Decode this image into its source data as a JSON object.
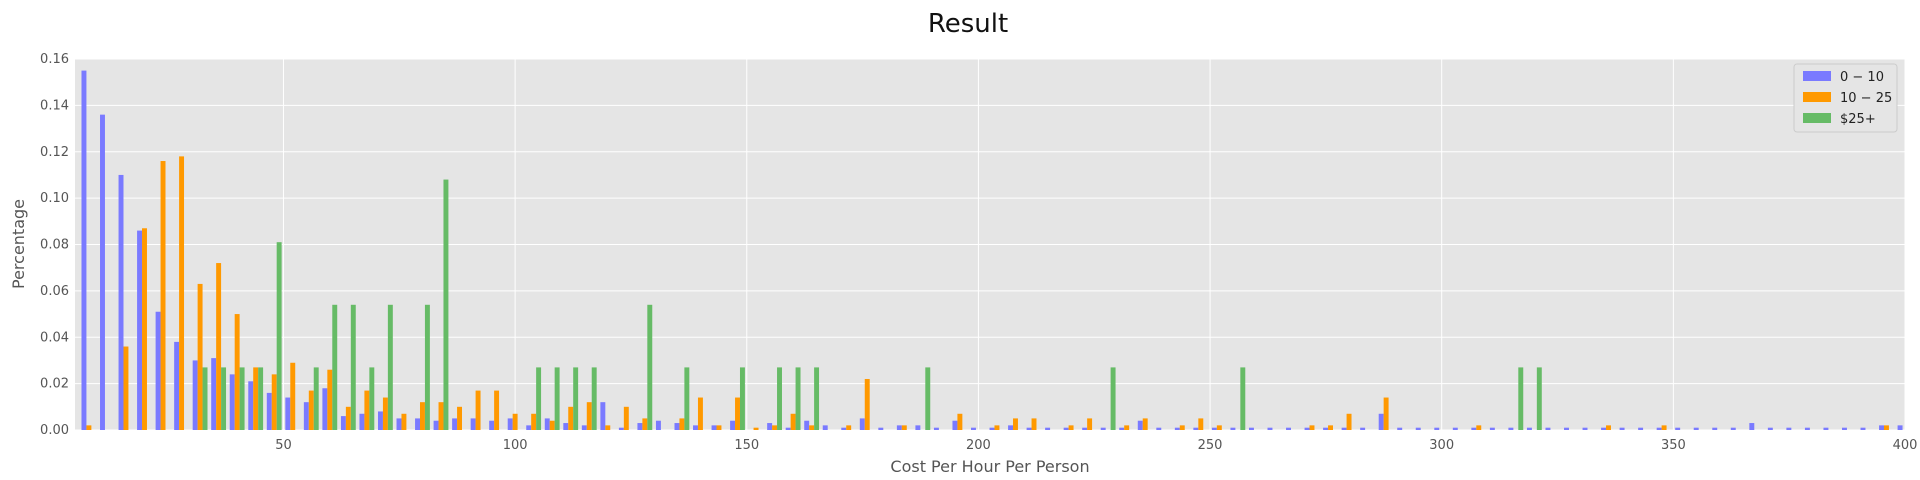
{
  "chart_data": {
    "type": "bar",
    "title": "Result",
    "xlabel": "Cost Per Hour Per Person",
    "ylabel": "Percentage",
    "xlim": [
      5,
      400
    ],
    "ylim": [
      0,
      0.16
    ],
    "x_ticks": [
      50,
      100,
      150,
      200,
      250,
      300,
      350,
      400
    ],
    "x_tick_labels": [
      "50",
      "100",
      "150",
      "200",
      "250",
      "300",
      "350",
      "400"
    ],
    "y_ticks": [
      0,
      0.02,
      0.04,
      0.06,
      0.08,
      0.1,
      0.12,
      0.14,
      0.16
    ],
    "y_tick_labels": [
      "0.00",
      "0.02",
      "0.04",
      "0.06",
      "0.08",
      "0.10",
      "0.12",
      "0.14",
      "0.16"
    ],
    "grid": true,
    "legend_position": "top-right",
    "x": [
      8,
      12,
      16,
      20,
      24,
      28,
      32,
      36,
      40,
      44,
      48,
      52,
      56,
      60,
      64,
      68,
      72,
      76,
      80,
      84,
      88,
      92,
      96,
      100,
      104,
      108,
      112,
      116,
      120,
      124,
      128,
      132,
      136,
      140,
      144,
      148,
      152,
      156,
      160,
      164,
      168,
      172,
      176,
      180,
      184,
      188,
      192,
      196,
      200,
      204,
      208,
      212,
      216,
      220,
      224,
      228,
      232,
      236,
      240,
      244,
      248,
      252,
      256,
      260,
      264,
      268,
      272,
      276,
      280,
      284,
      288,
      292,
      296,
      300,
      304,
      308,
      312,
      316,
      320,
      324,
      328,
      332,
      336,
      340,
      344,
      348,
      352,
      356,
      360,
      364,
      368,
      372,
      376,
      380,
      384,
      388,
      392,
      396,
      400
    ],
    "series": [
      {
        "name": "0 − 10",
        "color": "#7a7aff",
        "values": [
          0.155,
          0.136,
          0.11,
          0.086,
          0.051,
          0.038,
          0.03,
          0.031,
          0.024,
          0.021,
          0.016,
          0.014,
          0.012,
          0.018,
          0.006,
          0.007,
          0.008,
          0.005,
          0.005,
          0.004,
          0.005,
          0.005,
          0.004,
          0.005,
          0.002,
          0.005,
          0.003,
          0.002,
          0.012,
          0.001,
          0.003,
          0.004,
          0.003,
          0.002,
          0.002,
          0.004,
          0,
          0.003,
          0.001,
          0.004,
          0.002,
          0.001,
          0.005,
          0.001,
          0.002,
          0.002,
          0.001,
          0.004,
          0.001,
          0.001,
          0.002,
          0.001,
          0.001,
          0.001,
          0.001,
          0.001,
          0.001,
          0.004,
          0.001,
          0.001,
          0.001,
          0.001,
          0.001,
          0.001,
          0.001,
          0.001,
          0.001,
          0.001,
          0.001,
          0.001,
          0.007,
          0.001,
          0.001,
          0.001,
          0.001,
          0.001,
          0.001,
          0.001,
          0.001,
          0.001,
          0.001,
          0.001,
          0.001,
          0.001,
          0.001,
          0.001,
          0.001,
          0.001,
          0.001,
          0.001,
          0.003,
          0.001,
          0.001,
          0.001,
          0.001,
          0.001,
          0.001,
          0.002,
          0.002
        ]
      },
      {
        "name": "10 − 25",
        "color": "#ff9900",
        "values": [
          0.002,
          0,
          0.036,
          0.087,
          0.116,
          0.118,
          0.063,
          0.072,
          0.05,
          0.027,
          0.024,
          0.029,
          0.017,
          0.026,
          0.01,
          0.017,
          0.014,
          0.007,
          0.012,
          0.012,
          0.01,
          0.017,
          0.017,
          0.007,
          0.007,
          0.004,
          0.01,
          0.012,
          0.002,
          0.01,
          0.005,
          0,
          0.005,
          0.014,
          0.002,
          0.014,
          0.001,
          0.002,
          0.007,
          0.002,
          0,
          0.002,
          0.022,
          0,
          0.002,
          0,
          0,
          0.007,
          0,
          0.002,
          0.005,
          0.005,
          0,
          0.002,
          0.005,
          0,
          0.002,
          0.005,
          0,
          0.002,
          0.005,
          0.002,
          0,
          0,
          0,
          0,
          0.002,
          0.002,
          0.007,
          0,
          0.014,
          0,
          0,
          0,
          0,
          0.002,
          0,
          0,
          0,
          0,
          0,
          0,
          0.002,
          0,
          0,
          0.002,
          0,
          0,
          0,
          0,
          0,
          0,
          0,
          0,
          0,
          0,
          0,
          0.002,
          0
        ]
      },
      {
        "name": "$25+",
        "color": "#66bb66",
        "values": [
          0,
          0,
          0,
          0,
          0,
          0,
          0.027,
          0.027,
          0.027,
          0.027,
          0.081,
          0,
          0.027,
          0.054,
          0.054,
          0.027,
          0.054,
          0,
          0.054,
          0.108,
          0,
          0,
          0,
          0,
          0.027,
          0.027,
          0.027,
          0.027,
          0,
          0,
          0.054,
          0,
          0.027,
          0,
          0,
          0.027,
          0,
          0.027,
          0.027,
          0.027,
          0,
          0,
          0,
          0,
          0,
          0.027,
          0,
          0,
          0,
          0,
          0,
          0,
          0,
          0,
          0,
          0.027,
          0,
          0,
          0,
          0,
          0,
          0,
          0.027,
          0,
          0,
          0,
          0,
          0,
          0,
          0,
          0,
          0,
          0,
          0,
          0,
          0,
          0,
          0.027,
          0.027,
          0,
          0,
          0,
          0,
          0,
          0,
          0,
          0,
          0,
          0,
          0,
          0,
          0,
          0,
          0,
          0,
          0,
          0,
          0,
          0
        ]
      }
    ]
  }
}
